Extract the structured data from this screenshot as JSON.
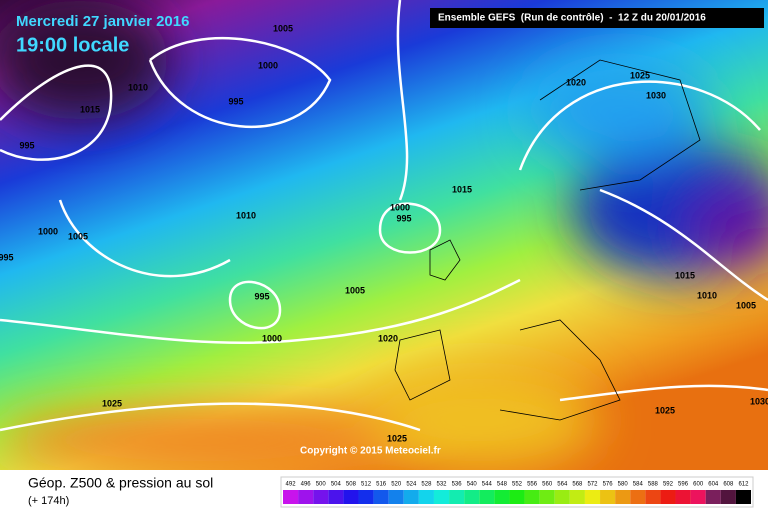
{
  "header": {
    "date": "Mercredi 27 janvier 2016",
    "time": "19:00 locale",
    "run": "Ensemble GEFS  (Run de contrôle)  -  12 Z du 20/01/2016"
  },
  "copyright": "Copyright © 2015 Meteociel.fr",
  "isobar_labels": [
    1005,
    1000,
    1010,
    995,
    1015,
    995,
    1010,
    1000,
    1005,
    995,
    1000,
    995,
    1015,
    995,
    1005,
    1000,
    1020,
    1025,
    1025,
    1020,
    1025,
    1030,
    1015,
    1010,
    1005,
    1025,
    1030
  ],
  "footer": {
    "title": "Géop. Z500 & pression au sol",
    "lead": "(+ 174h)"
  },
  "scale_labels": [
    492,
    496,
    500,
    504,
    508,
    512,
    516,
    520,
    524,
    528,
    532,
    536,
    540,
    544,
    548,
    552,
    556,
    560,
    564,
    568,
    572,
    576,
    580,
    584,
    588,
    592,
    596,
    600,
    604,
    608,
    612
  ]
}
